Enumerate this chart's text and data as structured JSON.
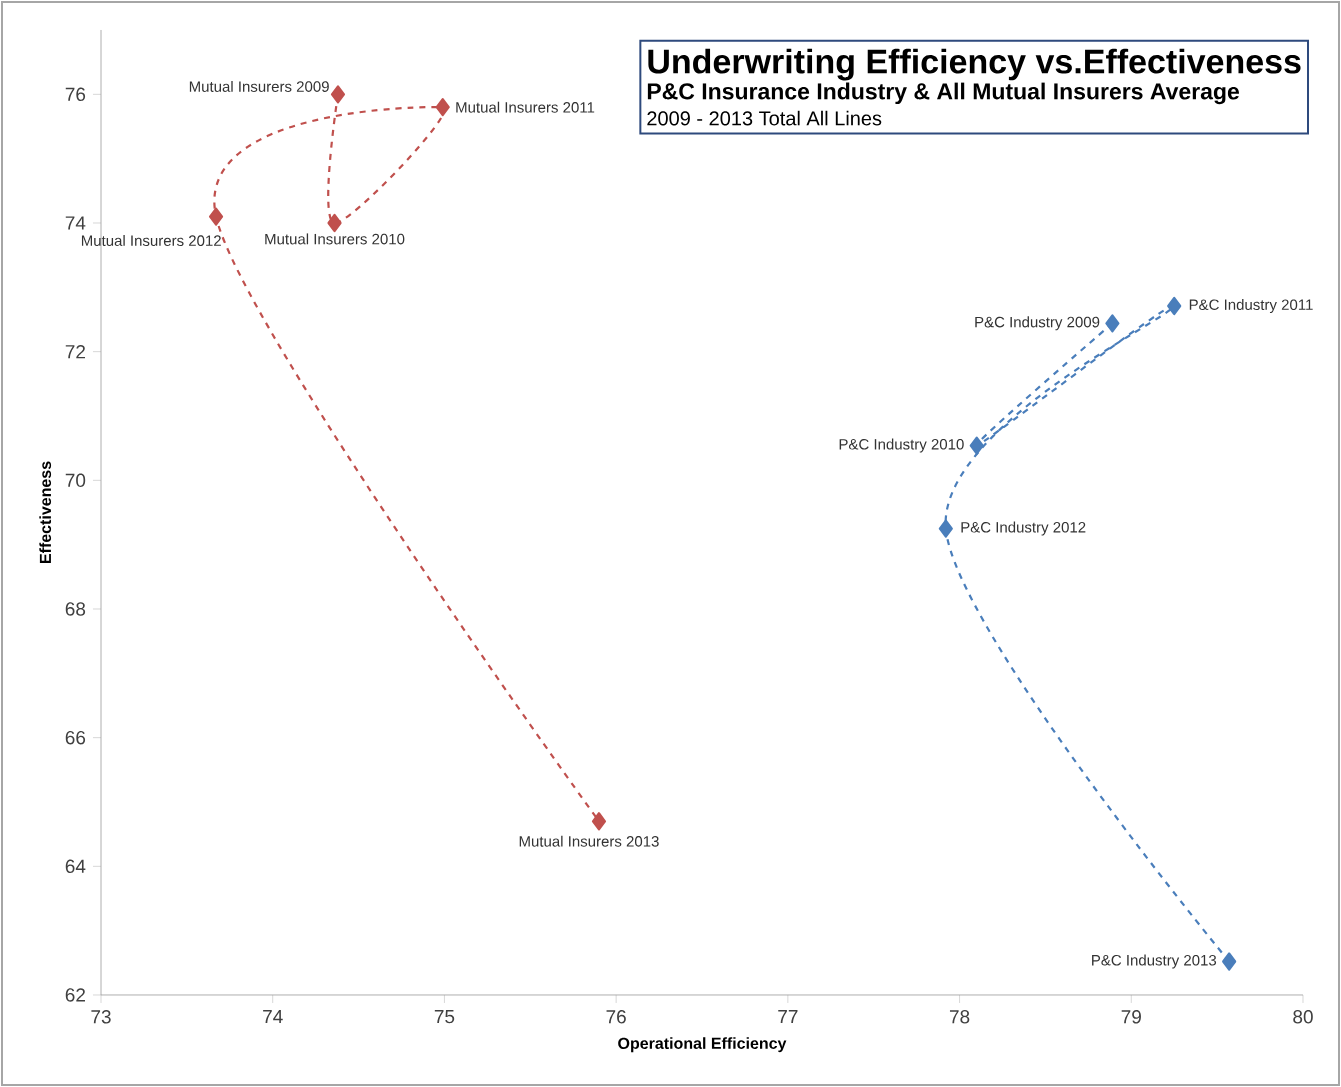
{
  "chart_data": {
    "type": "line",
    "title": "Underwriting Efficiency vs.Effectiveness",
    "subtitle": "P&C Insurance Industry & All Mutual Insurers Average",
    "xlabel": "Operational Efficiency",
    "ylabel": "Effectiveness",
    "xlim": [
      73,
      80
    ],
    "ylim": [
      62,
      77
    ],
    "xticks": [
      73,
      74,
      75,
      76,
      77,
      78,
      79,
      80
    ],
    "yticks": [
      62,
      64,
      66,
      68,
      70,
      72,
      74,
      76
    ],
    "marker": "diamond",
    "line_style": "dashed",
    "series": [
      {
        "color": "#c0504d",
        "x": [
          74.38,
          74.36,
          74.99,
          73.67,
          75.9
        ],
        "values": [
          76.0,
          74.0,
          75.8,
          74.1,
          64.7
        ]
      },
      {
        "color": "#4a7ebb",
        "x": [
          78.89,
          78.1,
          79.25,
          77.92,
          79.57
        ],
        "values": [
          72.44,
          70.54,
          72.71,
          69.25,
          62.52
        ]
      }
    ],
    "annotations": [
      "2009 - 2013 Total All Lines",
      {
        "text": "Mutual Insurers 2009",
        "x": 74.38,
        "y": 76.0
      },
      {
        "text": "Mutual Insurers 2010",
        "x": 74.36,
        "y": 74.0
      },
      {
        "text": "Mutual Insurers 2011",
        "x": 74.99,
        "y": 75.8
      },
      {
        "text": "Mutual Insurers 2012",
        "x": 73.67,
        "y": 74.1
      },
      {
        "text": "Mutual Insurers 2013",
        "x": 75.9,
        "y": 64.7
      },
      {
        "text": "P&C Industry 2009",
        "x": 78.89,
        "y": 72.44
      },
      {
        "text": "P&C Industry 2010",
        "x": 78.1,
        "y": 70.54
      },
      {
        "text": "P&C Industry 2011",
        "x": 79.25,
        "y": 72.71
      },
      {
        "text": "P&C Industry 2012",
        "x": 77.92,
        "y": 69.25
      },
      {
        "text": "P&C Industry 2013",
        "x": 79.57,
        "y": 62.52
      }
    ]
  }
}
